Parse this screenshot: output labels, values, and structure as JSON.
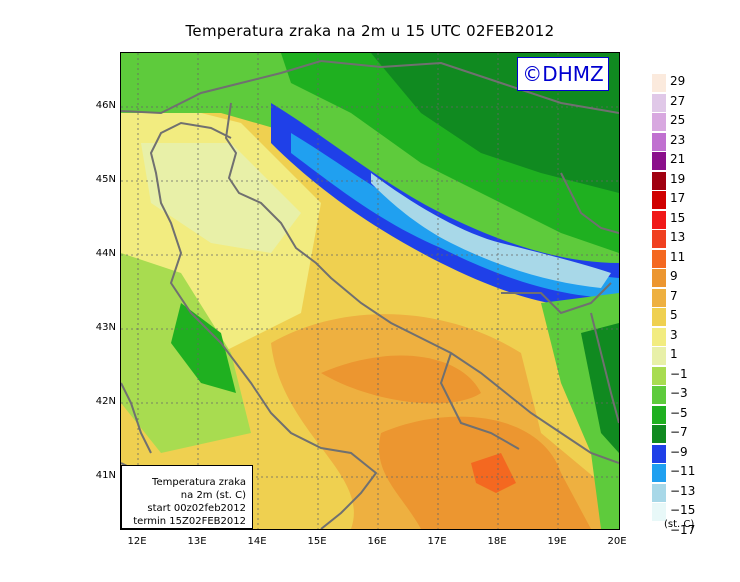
{
  "title": "Temperatura zraka na 2m u 15 UTC 02FEB2012",
  "logo": "©DHMZ",
  "info": [
    "Temperatura zraka",
    "na 2m (st. C)",
    "start 00z02feb2012",
    "termin 15Z02FEB2012"
  ],
  "lat_ticks": [
    "46N",
    "45N",
    "44N",
    "43N",
    "42N",
    "41N"
  ],
  "lon_ticks": [
    "12E",
    "13E",
    "14E",
    "15E",
    "16E",
    "17E",
    "18E",
    "19E",
    "20E"
  ],
  "legend": {
    "unit": "(st. C)",
    "items": [
      {
        "label": "29",
        "color": "#fbeadd"
      },
      {
        "label": "27",
        "color": "#e0c8e8"
      },
      {
        "label": "25",
        "color": "#d8a8e0"
      },
      {
        "label": "23",
        "color": "#c070d0"
      },
      {
        "label": "21",
        "color": "#8b0f8b"
      },
      {
        "label": "19",
        "color": "#a00010"
      },
      {
        "label": "17",
        "color": "#d00000"
      },
      {
        "label": "15",
        "color": "#f01818"
      },
      {
        "label": "13",
        "color": "#f04020"
      },
      {
        "label": "11",
        "color": "#f46820"
      },
      {
        "label": "9",
        "color": "#ec9630"
      },
      {
        "label": "7",
        "color": "#eeb040"
      },
      {
        "label": "5",
        "color": "#efd050"
      },
      {
        "label": "3",
        "color": "#f2ec80"
      },
      {
        "label": "1",
        "color": "#e8f0a8"
      },
      {
        "label": "−1",
        "color": "#a8dc50"
      },
      {
        "label": "−3",
        "color": "#5ecb3c"
      },
      {
        "label": "−5",
        "color": "#1fb020"
      },
      {
        "label": "−7",
        "color": "#108a20"
      },
      {
        "label": "−9",
        "color": "#1f40e8"
      },
      {
        "label": "−11",
        "color": "#20a0f0"
      },
      {
        "label": "−13",
        "color": "#a8d8e8"
      },
      {
        "label": "−15",
        "color": "#e8f8f8"
      },
      {
        "label": "−17",
        "color": "#ffffff"
      }
    ]
  }
}
